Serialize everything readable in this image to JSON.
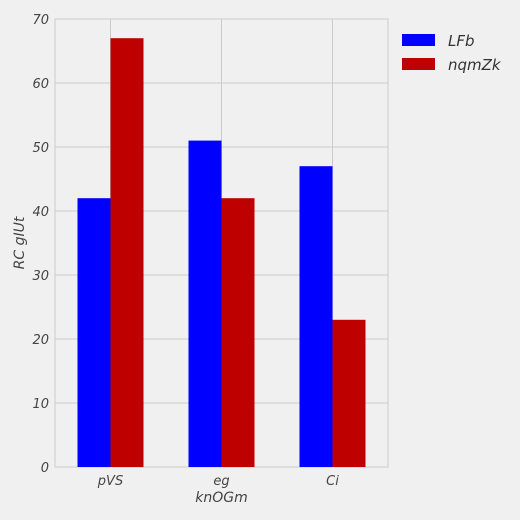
{
  "chart_data": {
    "type": "bar",
    "title": "",
    "xlabel": "knOGm",
    "ylabel": "RC gIUt",
    "categories": [
      "pVS",
      "eg",
      "Ci"
    ],
    "series": [
      {
        "name": "LFb",
        "values": [
          42,
          51,
          47
        ],
        "color": "#0000ff"
      },
      {
        "name": "nqmZk",
        "values": [
          67,
          42,
          23
        ],
        "color": "#bf0000"
      }
    ],
    "ylim": [
      0,
      70
    ],
    "yticks": [
      0,
      10,
      20,
      30,
      40,
      50,
      60,
      70
    ],
    "grid": true,
    "legend_position": "outside-top-right"
  }
}
